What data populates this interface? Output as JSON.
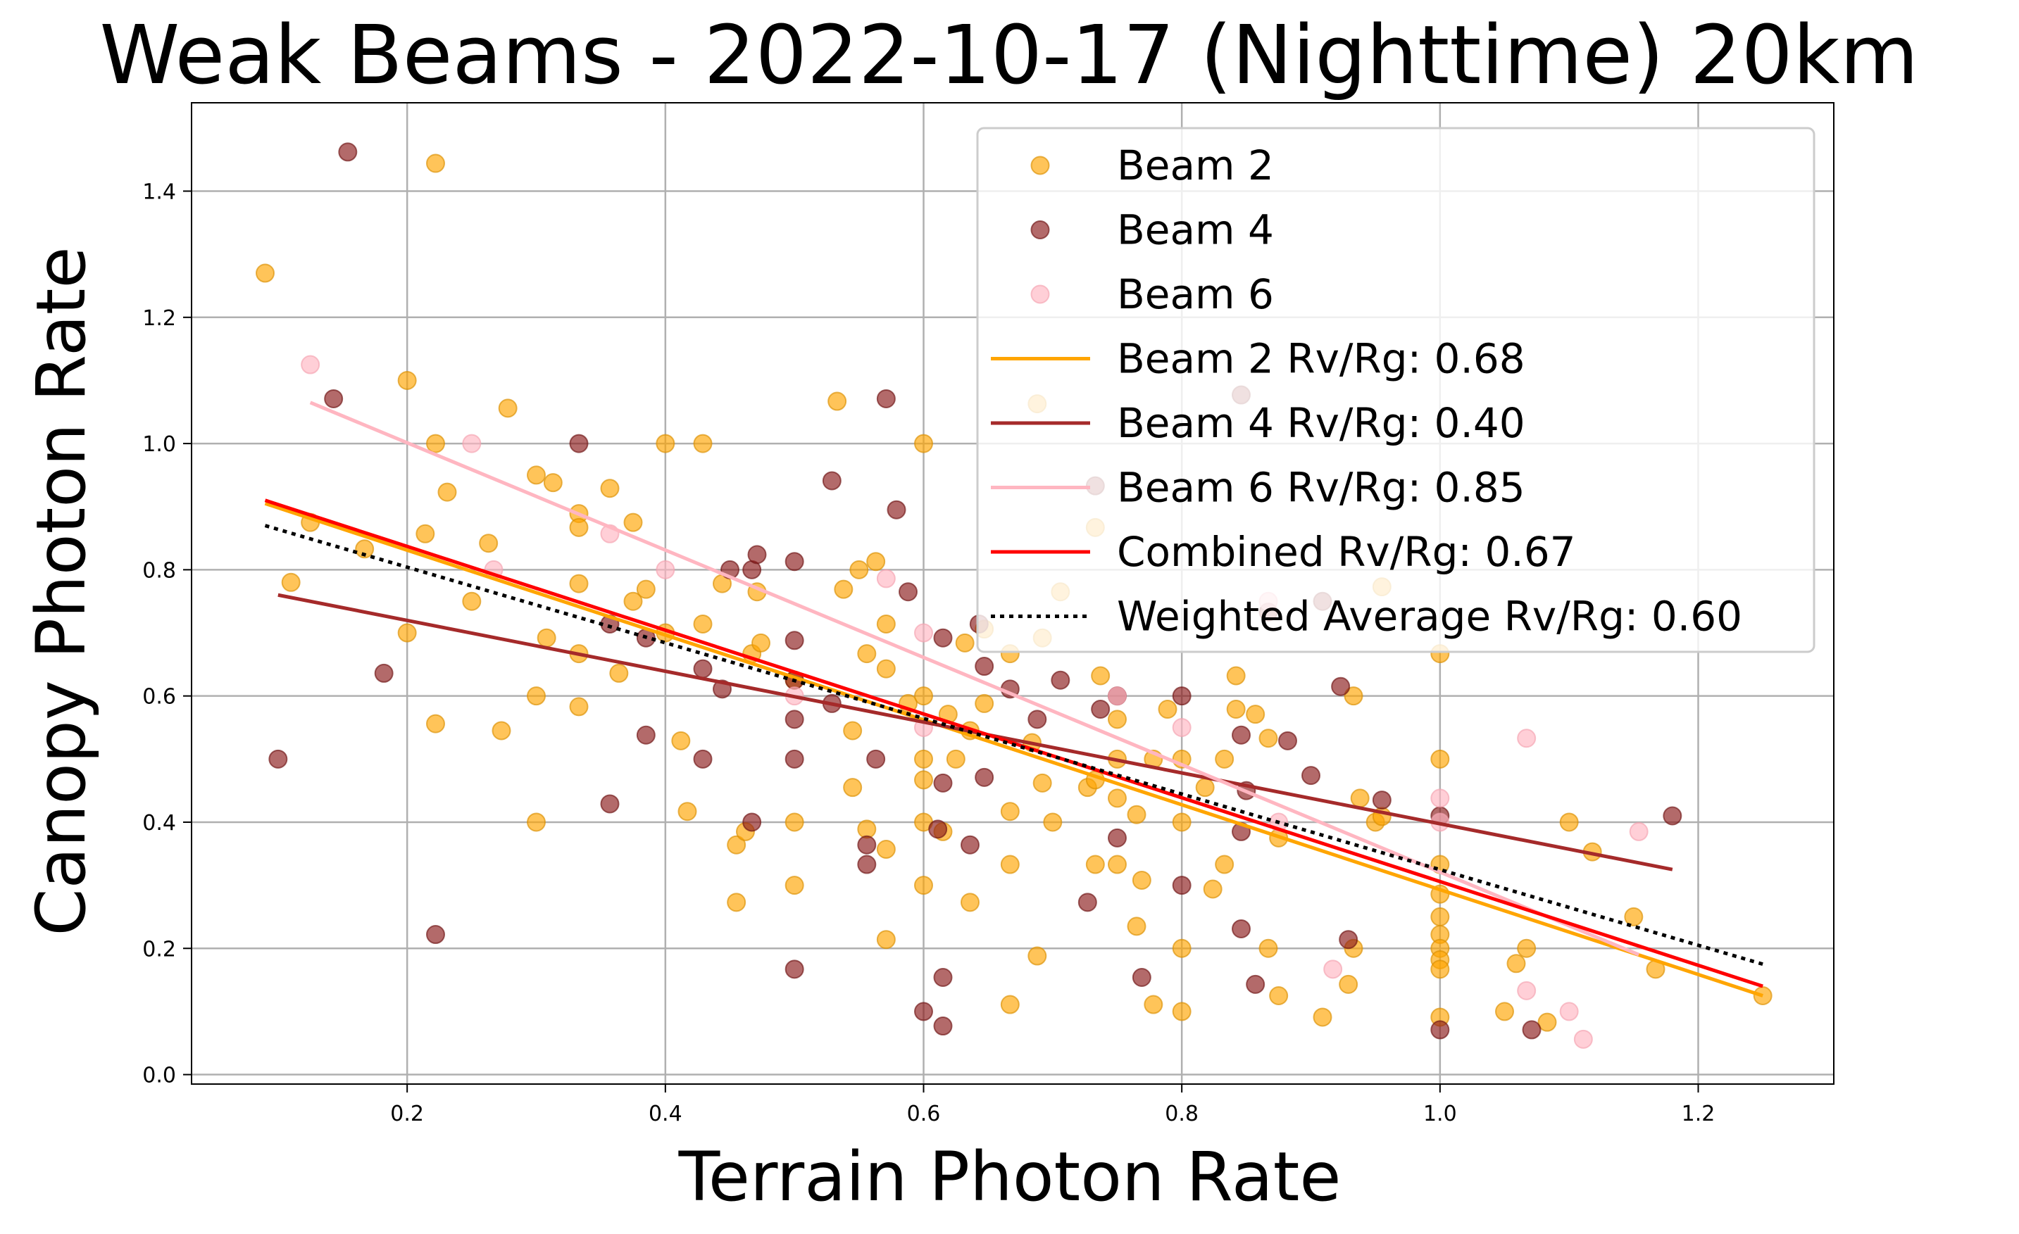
{
  "chart_data": {
    "type": "scatter",
    "title": "Weak Beams - 2022-10-17 (Nighttime) 20km",
    "xlabel": "Terrain Photon Rate",
    "ylabel": "Canopy Photon Rate",
    "xlim": [
      0.033,
      1.305
    ],
    "ylim": [
      -0.015,
      1.54
    ],
    "xticks": [
      0.2,
      0.4,
      0.6,
      0.8,
      1.0,
      1.2
    ],
    "xtick_labels": [
      "0.2",
      "0.4",
      "0.6",
      "0.8",
      "1.0",
      "1.2"
    ],
    "yticks": [
      0.0,
      0.2,
      0.4,
      0.6,
      0.8,
      1.0,
      1.2,
      1.4
    ],
    "ytick_labels": [
      "0.0",
      "0.2",
      "0.4",
      "0.6",
      "0.8",
      "1.0",
      "1.2",
      "1.4"
    ],
    "grid": true,
    "legend_position": "top-right",
    "series": [
      {
        "name": "Beam 2",
        "kind": "scatter",
        "color": "#FFA500",
        "edge": "#DA8F00",
        "points": [
          [
            0.09,
            1.27
          ],
          [
            0.11,
            0.78
          ],
          [
            0.125,
            0.875
          ],
          [
            0.167,
            0.833
          ],
          [
            0.2,
            1.1
          ],
          [
            0.2,
            0.7
          ],
          [
            0.214,
            0.857
          ],
          [
            0.222,
            1.444
          ],
          [
            0.222,
            1.0
          ],
          [
            0.222,
            0.556
          ],
          [
            0.231,
            0.923
          ],
          [
            0.25,
            0.75
          ],
          [
            0.263,
            0.842
          ],
          [
            0.273,
            0.545
          ],
          [
            0.278,
            1.056
          ],
          [
            0.3,
            0.95
          ],
          [
            0.3,
            0.6
          ],
          [
            0.3,
            0.4
          ],
          [
            0.308,
            0.692
          ],
          [
            0.313,
            0.938
          ],
          [
            0.333,
            0.889
          ],
          [
            0.333,
            0.867
          ],
          [
            0.333,
            0.778
          ],
          [
            0.333,
            0.667
          ],
          [
            0.333,
            0.583
          ],
          [
            0.357,
            0.929
          ],
          [
            0.364,
            0.636
          ],
          [
            0.375,
            0.875
          ],
          [
            0.375,
            0.75
          ],
          [
            0.385,
            0.769
          ],
          [
            0.4,
            1.0
          ],
          [
            0.4,
            0.7
          ],
          [
            0.412,
            0.529
          ],
          [
            0.417,
            0.417
          ],
          [
            0.429,
            1.0
          ],
          [
            0.429,
            0.714
          ],
          [
            0.444,
            0.778
          ],
          [
            0.455,
            0.364
          ],
          [
            0.455,
            0.273
          ],
          [
            0.462,
            0.385
          ],
          [
            0.467,
            0.667
          ],
          [
            0.471,
            0.765
          ],
          [
            0.474,
            0.684
          ],
          [
            0.5,
            0.625
          ],
          [
            0.5,
            0.4
          ],
          [
            0.5,
            0.3
          ],
          [
            0.533,
            1.067
          ],
          [
            0.538,
            0.769
          ],
          [
            0.545,
            0.545
          ],
          [
            0.545,
            0.455
          ],
          [
            0.55,
            0.8
          ],
          [
            0.556,
            0.389
          ],
          [
            0.556,
            0.667
          ],
          [
            0.563,
            0.813
          ],
          [
            0.571,
            0.714
          ],
          [
            0.571,
            0.643
          ],
          [
            0.571,
            0.357
          ],
          [
            0.571,
            0.214
          ],
          [
            0.588,
            0.588
          ],
          [
            0.6,
            1.0
          ],
          [
            0.6,
            0.6
          ],
          [
            0.6,
            0.5
          ],
          [
            0.6,
            0.467
          ],
          [
            0.6,
            0.4
          ],
          [
            0.6,
            0.3
          ],
          [
            0.615,
            0.385
          ],
          [
            0.619,
            0.571
          ],
          [
            0.625,
            0.5
          ],
          [
            0.632,
            0.684
          ],
          [
            0.636,
            0.545
          ],
          [
            0.636,
            0.273
          ],
          [
            0.647,
            0.706
          ],
          [
            0.647,
            0.588
          ],
          [
            0.667,
            0.667
          ],
          [
            0.667,
            0.417
          ],
          [
            0.667,
            0.333
          ],
          [
            0.667,
            0.111
          ],
          [
            0.684,
            0.526
          ],
          [
            0.688,
            1.063
          ],
          [
            0.688,
            0.188
          ],
          [
            0.692,
            0.692
          ],
          [
            0.692,
            0.462
          ],
          [
            0.7,
            0.4
          ],
          [
            0.706,
            0.765
          ],
          [
            0.727,
            0.455
          ],
          [
            0.733,
            0.867
          ],
          [
            0.733,
            0.467
          ],
          [
            0.733,
            0.333
          ],
          [
            0.737,
            0.632
          ],
          [
            0.75,
            0.5
          ],
          [
            0.75,
            0.563
          ],
          [
            0.75,
            0.438
          ],
          [
            0.75,
            0.333
          ],
          [
            0.765,
            0.412
          ],
          [
            0.765,
            0.235
          ],
          [
            0.769,
            0.308
          ],
          [
            0.778,
            0.5
          ],
          [
            0.778,
            0.111
          ],
          [
            0.789,
            0.579
          ],
          [
            0.8,
            0.5
          ],
          [
            0.8,
            0.4
          ],
          [
            0.8,
            0.2
          ],
          [
            0.8,
            0.1
          ],
          [
            0.818,
            0.455
          ],
          [
            0.824,
            0.294
          ],
          [
            0.833,
            0.5
          ],
          [
            0.833,
            0.333
          ],
          [
            0.842,
            0.632
          ],
          [
            0.842,
            0.579
          ],
          [
            0.857,
            0.571
          ],
          [
            0.867,
            0.533
          ],
          [
            0.867,
            0.2
          ],
          [
            0.875,
            0.375
          ],
          [
            0.875,
            0.125
          ],
          [
            0.909,
            0.091
          ],
          [
            0.929,
            0.143
          ],
          [
            0.933,
            0.6
          ],
          [
            0.933,
            0.2
          ],
          [
            0.938,
            0.438
          ],
          [
            0.95,
            0.4
          ],
          [
            0.955,
            0.409
          ],
          [
            0.955,
            0.773
          ],
          [
            1.0,
            0.667
          ],
          [
            1.0,
            0.5
          ],
          [
            1.0,
            0.333
          ],
          [
            1.0,
            0.286
          ],
          [
            1.0,
            0.25
          ],
          [
            1.0,
            0.222
          ],
          [
            1.0,
            0.2
          ],
          [
            1.0,
            0.182
          ],
          [
            1.0,
            0.167
          ],
          [
            1.0,
            0.091
          ],
          [
            1.05,
            0.1
          ],
          [
            1.059,
            0.176
          ],
          [
            1.067,
            0.2
          ],
          [
            1.083,
            0.083
          ],
          [
            1.1,
            0.4
          ],
          [
            1.118,
            0.353
          ],
          [
            1.15,
            0.25
          ],
          [
            1.167,
            0.167
          ],
          [
            1.25,
            0.125
          ]
        ]
      },
      {
        "name": "Beam 4",
        "kind": "scatter",
        "color": "#8B1A1A",
        "edge": "#6E1414",
        "points": [
          [
            0.1,
            0.5
          ],
          [
            0.143,
            1.071
          ],
          [
            0.154,
            1.462
          ],
          [
            0.182,
            0.636
          ],
          [
            0.222,
            0.222
          ],
          [
            0.333,
            1.0
          ],
          [
            0.357,
            0.714
          ],
          [
            0.357,
            0.429
          ],
          [
            0.385,
            0.692
          ],
          [
            0.385,
            0.538
          ],
          [
            0.429,
            0.643
          ],
          [
            0.429,
            0.5
          ],
          [
            0.444,
            0.611
          ],
          [
            0.45,
            0.8
          ],
          [
            0.467,
            0.4
          ],
          [
            0.467,
            0.8
          ],
          [
            0.471,
            0.824
          ],
          [
            0.5,
            0.813
          ],
          [
            0.5,
            0.688
          ],
          [
            0.5,
            0.563
          ],
          [
            0.5,
            0.5
          ],
          [
            0.5,
            0.625
          ],
          [
            0.5,
            0.167
          ],
          [
            0.529,
            0.941
          ],
          [
            0.529,
            0.588
          ],
          [
            0.556,
            0.364
          ],
          [
            0.556,
            0.333
          ],
          [
            0.563,
            0.5
          ],
          [
            0.571,
            1.071
          ],
          [
            0.579,
            0.895
          ],
          [
            0.588,
            0.765
          ],
          [
            0.6,
            0.1
          ],
          [
            0.611,
            0.389
          ],
          [
            0.615,
            0.692
          ],
          [
            0.615,
            0.462
          ],
          [
            0.615,
            0.154
          ],
          [
            0.615,
            0.077
          ],
          [
            0.636,
            0.364
          ],
          [
            0.643,
            0.714
          ],
          [
            0.647,
            0.471
          ],
          [
            0.647,
            0.647
          ],
          [
            0.667,
            0.611
          ],
          [
            0.688,
            0.563
          ],
          [
            0.706,
            0.625
          ],
          [
            0.727,
            0.273
          ],
          [
            0.733,
            0.933
          ],
          [
            0.737,
            0.579
          ],
          [
            0.75,
            0.6
          ],
          [
            0.75,
            0.375
          ],
          [
            0.769,
            0.154
          ],
          [
            0.8,
            0.6
          ],
          [
            0.8,
            0.3
          ],
          [
            0.846,
            1.077
          ],
          [
            0.846,
            0.538
          ],
          [
            0.846,
            0.385
          ],
          [
            0.846,
            0.231
          ],
          [
            0.85,
            0.45
          ],
          [
            0.857,
            0.143
          ],
          [
            0.867,
            0.733
          ],
          [
            0.882,
            0.529
          ],
          [
            0.9,
            0.474
          ],
          [
            0.909,
            0.75
          ],
          [
            0.923,
            0.615
          ],
          [
            0.929,
            0.214
          ],
          [
            0.955,
            0.435
          ],
          [
            1.0,
            0.41
          ],
          [
            1.0,
            0.071
          ],
          [
            1.071,
            0.071
          ],
          [
            1.18,
            0.41
          ]
        ]
      },
      {
        "name": "Beam 6",
        "kind": "scatter",
        "color": "#FFB6C1",
        "edge": "#F4A3B0",
        "points": [
          [
            0.125,
            1.125
          ],
          [
            0.25,
            1.0
          ],
          [
            0.267,
            0.8
          ],
          [
            0.357,
            0.857
          ],
          [
            0.4,
            0.8
          ],
          [
            0.5,
            0.6
          ],
          [
            0.571,
            0.786
          ],
          [
            0.6,
            0.7
          ],
          [
            0.6,
            0.55
          ],
          [
            0.75,
            0.6
          ],
          [
            0.8,
            0.55
          ],
          [
            0.867,
            0.75
          ],
          [
            0.875,
            0.4
          ],
          [
            0.917,
            0.167
          ],
          [
            1.0,
            0.438
          ],
          [
            1.0,
            0.4
          ],
          [
            1.067,
            0.533
          ],
          [
            1.067,
            0.133
          ],
          [
            1.1,
            0.1
          ],
          [
            1.111,
            0.056
          ],
          [
            1.154,
            0.385
          ]
        ]
      },
      {
        "name": "Beam 2 Rv/Rg: 0.68",
        "kind": "line",
        "color": "#FFA500",
        "dash": "",
        "x": [
          0.09,
          1.25
        ],
        "y": [
          0.905,
          0.125
        ]
      },
      {
        "name": "Beam 4 Rv/Rg: 0.40",
        "kind": "line",
        "color": "#A52A2A",
        "dash": "",
        "x": [
          0.1,
          1.18
        ],
        "y": [
          0.76,
          0.325
        ]
      },
      {
        "name": "Beam 6 Rv/Rg: 0.85",
        "kind": "line",
        "color": "#FFB6C1",
        "dash": "",
        "x": [
          0.125,
          1.154
        ],
        "y": [
          1.065,
          0.19
        ]
      },
      {
        "name": "Combined Rv/Rg: 0.67",
        "kind": "line",
        "color": "#FF0000",
        "dash": "",
        "x": [
          0.09,
          1.25
        ],
        "y": [
          0.91,
          0.14
        ]
      },
      {
        "name": "Weighted Average Rv/Rg: 0.60",
        "kind": "line",
        "color": "#000000",
        "dash": "6 7",
        "x": [
          0.09,
          1.25
        ],
        "y": [
          0.87,
          0.175
        ]
      }
    ]
  }
}
